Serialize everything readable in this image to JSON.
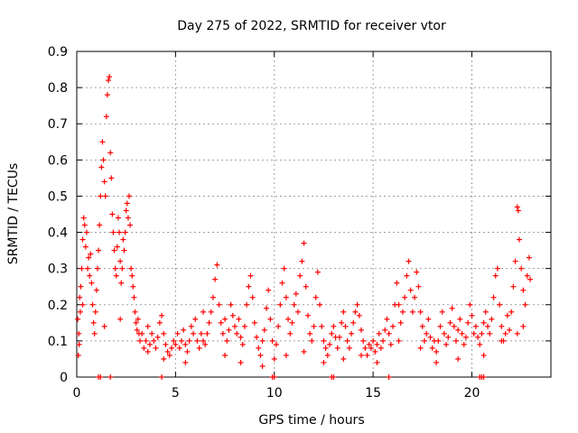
{
  "chart_data": {
    "type": "scatter",
    "title": "Day 275 of 2022, SRMTID for receiver vtor",
    "xlabel": "GPS time / hours",
    "ylabel": "SRMTID / TECUs",
    "xlim": [
      0,
      24
    ],
    "ylim": [
      0,
      0.9
    ],
    "xticks": [
      0,
      5,
      10,
      15,
      20
    ],
    "xtick_labels": [
      "0",
      "5",
      "10",
      "15",
      "20"
    ],
    "yticks": [
      0,
      0.1,
      0.2,
      0.3,
      0.4,
      0.5,
      0.6,
      0.7,
      0.8,
      0.9
    ],
    "ytick_labels": [
      "0",
      "0.1",
      "0.2",
      "0.3",
      "0.4",
      "0.5",
      "0.6",
      "0.7",
      "0.8",
      "0.9"
    ],
    "grid": true,
    "marker": "+",
    "color": "#ff0000",
    "series": [
      {
        "name": "SRMTID",
        "points": [
          [
            0.05,
            0.16
          ],
          [
            0.1,
            0.12
          ],
          [
            0.12,
            0.09
          ],
          [
            0.15,
            0.22
          ],
          [
            0.18,
            0.18
          ],
          [
            0.2,
            0.25
          ],
          [
            0.25,
            0.3
          ],
          [
            0.3,
            0.38
          ],
          [
            0.35,
            0.44
          ],
          [
            0.4,
            0.42
          ],
          [
            0.45,
            0.36
          ],
          [
            0.5,
            0.4
          ],
          [
            0.55,
            0.3
          ],
          [
            0.6,
            0.33
          ],
          [
            0.65,
            0.28
          ],
          [
            0.7,
            0.34
          ],
          [
            0.75,
            0.26
          ],
          [
            0.8,
            0.2
          ],
          [
            0.85,
            0.15
          ],
          [
            0.9,
            0.12
          ],
          [
            0.95,
            0.18
          ],
          [
            1.0,
            0.24
          ],
          [
            1.05,
            0.3
          ],
          [
            1.1,
            0.35
          ],
          [
            1.15,
            0.42
          ],
          [
            1.2,
            0.5
          ],
          [
            1.25,
            0.58
          ],
          [
            1.3,
            0.65
          ],
          [
            1.35,
            0.6
          ],
          [
            1.4,
            0.54
          ],
          [
            1.45,
            0.5
          ],
          [
            1.5,
            0.72
          ],
          [
            1.55,
            0.78
          ],
          [
            1.6,
            0.82
          ],
          [
            1.65,
            0.83
          ],
          [
            1.7,
            0.62
          ],
          [
            1.75,
            0.55
          ],
          [
            1.8,
            0.45
          ],
          [
            1.85,
            0.4
          ],
          [
            1.9,
            0.35
          ],
          [
            1.95,
            0.3
          ],
          [
            2.0,
            0.28
          ],
          [
            2.05,
            0.36
          ],
          [
            2.1,
            0.44
          ],
          [
            2.15,
            0.4
          ],
          [
            2.2,
            0.32
          ],
          [
            2.25,
            0.26
          ],
          [
            2.3,
            0.3
          ],
          [
            2.35,
            0.38
          ],
          [
            2.4,
            0.35
          ],
          [
            2.45,
            0.4
          ],
          [
            2.5,
            0.46
          ],
          [
            2.55,
            0.48
          ],
          [
            2.6,
            0.44
          ],
          [
            2.65,
            0.5
          ],
          [
            2.7,
            0.42
          ],
          [
            2.75,
            0.3
          ],
          [
            2.8,
            0.28
          ],
          [
            2.85,
            0.25
          ],
          [
            2.9,
            0.22
          ],
          [
            2.95,
            0.18
          ],
          [
            3.0,
            0.15
          ],
          [
            3.05,
            0.13
          ],
          [
            3.1,
            0.16
          ],
          [
            3.15,
            0.12
          ],
          [
            3.2,
            0.1
          ],
          [
            3.3,
            0.12
          ],
          [
            3.4,
            0.08
          ],
          [
            3.5,
            0.1
          ],
          [
            3.6,
            0.07
          ],
          [
            3.7,
            0.09
          ],
          [
            3.8,
            0.12
          ],
          [
            3.9,
            0.1
          ],
          [
            4.0,
            0.08
          ],
          [
            4.1,
            0.11
          ],
          [
            4.2,
            0.15
          ],
          [
            4.3,
            0.17
          ],
          [
            4.4,
            0.12
          ],
          [
            4.5,
            0.09
          ],
          [
            4.6,
            0.07
          ],
          [
            4.7,
            0.06
          ],
          [
            4.8,
            0.08
          ],
          [
            4.9,
            0.1
          ],
          [
            5.0,
            0.09
          ],
          [
            5.1,
            0.12
          ],
          [
            5.2,
            0.08
          ],
          [
            5.3,
            0.1
          ],
          [
            5.4,
            0.13
          ],
          [
            5.5,
            0.09
          ],
          [
            5.6,
            0.07
          ],
          [
            5.7,
            0.1
          ],
          [
            5.8,
            0.14
          ],
          [
            5.9,
            0.12
          ],
          [
            6.0,
            0.16
          ],
          [
            6.1,
            0.1
          ],
          [
            6.2,
            0.08
          ],
          [
            6.3,
            0.12
          ],
          [
            6.4,
            0.1
          ],
          [
            6.5,
            0.09
          ],
          [
            6.6,
            0.12
          ],
          [
            6.7,
            0.15
          ],
          [
            6.8,
            0.18
          ],
          [
            6.9,
            0.22
          ],
          [
            7.0,
            0.27
          ],
          [
            7.1,
            0.31
          ],
          [
            7.2,
            0.2
          ],
          [
            7.3,
            0.15
          ],
          [
            7.4,
            0.12
          ],
          [
            7.5,
            0.16
          ],
          [
            7.6,
            0.1
          ],
          [
            7.7,
            0.13
          ],
          [
            7.8,
            0.2
          ],
          [
            7.9,
            0.17
          ],
          [
            8.0,
            0.14
          ],
          [
            8.1,
            0.12
          ],
          [
            8.2,
            0.16
          ],
          [
            8.3,
            0.11
          ],
          [
            8.4,
            0.09
          ],
          [
            8.5,
            0.14
          ],
          [
            8.6,
            0.2
          ],
          [
            8.7,
            0.25
          ],
          [
            8.8,
            0.28
          ],
          [
            8.9,
            0.22
          ],
          [
            9.0,
            0.15
          ],
          [
            9.1,
            0.11
          ],
          [
            9.2,
            0.08
          ],
          [
            9.3,
            0.06
          ],
          [
            9.4,
            0.1
          ],
          [
            9.5,
            0.13
          ],
          [
            9.6,
            0.19
          ],
          [
            9.7,
            0.24
          ],
          [
            9.8,
            0.16
          ],
          [
            9.9,
            0.1
          ],
          [
            10.0,
            0.05
          ],
          [
            10.1,
            0.09
          ],
          [
            10.2,
            0.14
          ],
          [
            10.3,
            0.2
          ],
          [
            10.4,
            0.26
          ],
          [
            10.5,
            0.3
          ],
          [
            10.6,
            0.22
          ],
          [
            10.7,
            0.16
          ],
          [
            10.8,
            0.12
          ],
          [
            10.9,
            0.15
          ],
          [
            11.0,
            0.2
          ],
          [
            11.1,
            0.23
          ],
          [
            11.2,
            0.18
          ],
          [
            11.3,
            0.28
          ],
          [
            11.4,
            0.32
          ],
          [
            11.5,
            0.37
          ],
          [
            11.6,
            0.25
          ],
          [
            11.7,
            0.17
          ],
          [
            11.8,
            0.12
          ],
          [
            11.9,
            0.1
          ],
          [
            12.0,
            0.14
          ],
          [
            12.1,
            0.22
          ],
          [
            12.2,
            0.29
          ],
          [
            12.3,
            0.2
          ],
          [
            12.4,
            0.14
          ],
          [
            12.5,
            0.1
          ],
          [
            12.6,
            0.08
          ],
          [
            12.7,
            0.06
          ],
          [
            12.8,
            0.09
          ],
          [
            12.9,
            0.12
          ],
          [
            13.0,
            0.14
          ],
          [
            13.1,
            0.11
          ],
          [
            13.2,
            0.08
          ],
          [
            13.3,
            0.11
          ],
          [
            13.4,
            0.15
          ],
          [
            13.5,
            0.18
          ],
          [
            13.6,
            0.14
          ],
          [
            13.7,
            0.1
          ],
          [
            13.8,
            0.08
          ],
          [
            13.9,
            0.12
          ],
          [
            14.0,
            0.15
          ],
          [
            14.1,
            0.18
          ],
          [
            14.2,
            0.2
          ],
          [
            14.3,
            0.17
          ],
          [
            14.4,
            0.13
          ],
          [
            14.5,
            0.1
          ],
          [
            14.6,
            0.08
          ],
          [
            14.7,
            0.06
          ],
          [
            14.8,
            0.09
          ],
          [
            14.9,
            0.08
          ],
          [
            15.0,
            0.1
          ],
          [
            15.1,
            0.07
          ],
          [
            15.2,
            0.09
          ],
          [
            15.3,
            0.12
          ],
          [
            15.4,
            0.08
          ],
          [
            15.5,
            0.1
          ],
          [
            15.6,
            0.13
          ],
          [
            15.7,
            0.16
          ],
          [
            15.8,
            0.12
          ],
          [
            15.9,
            0.09
          ],
          [
            16.0,
            0.14
          ],
          [
            16.1,
            0.2
          ],
          [
            16.2,
            0.26
          ],
          [
            16.3,
            0.2
          ],
          [
            16.4,
            0.15
          ],
          [
            16.5,
            0.18
          ],
          [
            16.6,
            0.22
          ],
          [
            16.7,
            0.28
          ],
          [
            16.8,
            0.32
          ],
          [
            16.9,
            0.24
          ],
          [
            17.0,
            0.18
          ],
          [
            17.1,
            0.22
          ],
          [
            17.2,
            0.29
          ],
          [
            17.3,
            0.25
          ],
          [
            17.4,
            0.18
          ],
          [
            17.5,
            0.14
          ],
          [
            17.6,
            0.1
          ],
          [
            17.7,
            0.12
          ],
          [
            17.8,
            0.16
          ],
          [
            17.9,
            0.11
          ],
          [
            18.0,
            0.08
          ],
          [
            18.1,
            0.1
          ],
          [
            18.2,
            0.07
          ],
          [
            18.3,
            0.1
          ],
          [
            18.4,
            0.14
          ],
          [
            18.5,
            0.18
          ],
          [
            18.6,
            0.12
          ],
          [
            18.7,
            0.09
          ],
          [
            18.8,
            0.11
          ],
          [
            18.9,
            0.15
          ],
          [
            19.0,
            0.19
          ],
          [
            19.1,
            0.14
          ],
          [
            19.2,
            0.1
          ],
          [
            19.3,
            0.13
          ],
          [
            19.4,
            0.16
          ],
          [
            19.5,
            0.12
          ],
          [
            19.6,
            0.09
          ],
          [
            19.7,
            0.11
          ],
          [
            19.8,
            0.15
          ],
          [
            19.9,
            0.2
          ],
          [
            20.0,
            0.17
          ],
          [
            20.1,
            0.12
          ],
          [
            20.2,
            0.14
          ],
          [
            20.3,
            0.11
          ],
          [
            20.4,
            0.09
          ],
          [
            20.5,
            0.12
          ],
          [
            20.6,
            0.15
          ],
          [
            20.7,
            0.18
          ],
          [
            20.8,
            0.14
          ],
          [
            20.9,
            0.12
          ],
          [
            21.0,
            0.16
          ],
          [
            21.1,
            0.22
          ],
          [
            21.2,
            0.28
          ],
          [
            21.3,
            0.3
          ],
          [
            21.4,
            0.2
          ],
          [
            21.5,
            0.14
          ],
          [
            21.6,
            0.1
          ],
          [
            21.7,
            0.12
          ],
          [
            21.8,
            0.17
          ],
          [
            21.9,
            0.13
          ],
          [
            22.0,
            0.18
          ],
          [
            22.1,
            0.25
          ],
          [
            22.2,
            0.32
          ],
          [
            22.3,
            0.47
          ],
          [
            22.35,
            0.46
          ],
          [
            22.4,
            0.38
          ],
          [
            22.5,
            0.3
          ],
          [
            22.6,
            0.24
          ],
          [
            22.7,
            0.2
          ],
          [
            22.8,
            0.28
          ],
          [
            22.9,
            0.33
          ],
          [
            22.95,
            0.27
          ],
          [
            0.08,
            0.06
          ],
          [
            0.3,
            0.2
          ],
          [
            1.4,
            0.14
          ],
          [
            2.2,
            0.16
          ],
          [
            3.6,
            0.14
          ],
          [
            4.4,
            0.05
          ],
          [
            5.5,
            0.04
          ],
          [
            6.4,
            0.18
          ],
          [
            7.5,
            0.06
          ],
          [
            8.3,
            0.04
          ],
          [
            9.4,
            0.03
          ],
          [
            10.6,
            0.06
          ],
          [
            11.5,
            0.07
          ],
          [
            12.5,
            0.04
          ],
          [
            13.5,
            0.05
          ],
          [
            14.4,
            0.06
          ],
          [
            15.2,
            0.04
          ],
          [
            16.3,
            0.1
          ],
          [
            17.4,
            0.08
          ],
          [
            18.2,
            0.04
          ],
          [
            19.3,
            0.05
          ],
          [
            20.6,
            0.06
          ],
          [
            21.5,
            0.1
          ],
          [
            22.6,
            0.14
          ],
          [
            22.3,
            0.12
          ]
        ]
      }
    ],
    "zero_markers_x": [
      1.1,
      1.2,
      1.7,
      4.3,
      9.9,
      10.0,
      12.9,
      13.0,
      15.8,
      20.4,
      20.5,
      20.6
    ]
  }
}
